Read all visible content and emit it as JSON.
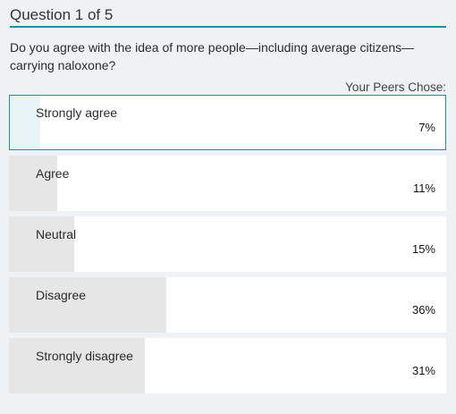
{
  "header": {
    "title": "Question 1 of 5",
    "accent_color": "#1d8fa6"
  },
  "question": {
    "text": "Do you agree with the idea of more people—including average citizens—carrying naloxone?"
  },
  "results": {
    "peers_label": "Your Peers Chose:"
  },
  "options": [
    {
      "label": "Strongly agree",
      "percent_label": "7%",
      "percent": 7,
      "selected": true
    },
    {
      "label": "Agree",
      "percent_label": "11%",
      "percent": 11,
      "selected": false
    },
    {
      "label": "Neutral",
      "percent_label": "15%",
      "percent": 15,
      "selected": false
    },
    {
      "label": "Disagree",
      "percent_label": "36%",
      "percent": 36,
      "selected": false
    },
    {
      "label": "Strongly disagree",
      "percent_label": "31%",
      "percent": 31,
      "selected": false
    }
  ]
}
